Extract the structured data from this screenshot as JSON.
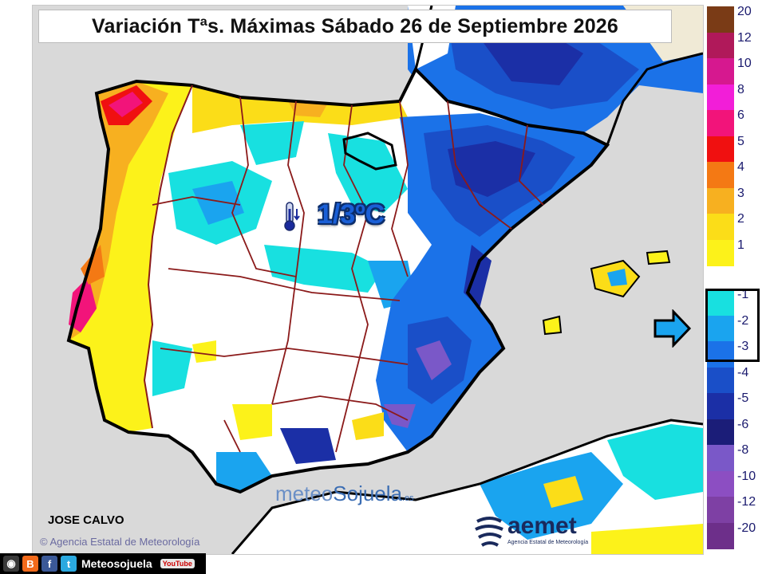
{
  "title": "Variación Tªs. Máximas Sábado 26 de Septiembre 2026",
  "highlight_value": "1/3ºC",
  "author": "JOSE CALVO",
  "agency_credit": "© Agencia Estatal de Meteorología",
  "brand": {
    "meteo_prefix": "meteo",
    "meteo_name": "Sojuela",
    "meteo_domain": ".es",
    "aemet_word": "aemet",
    "aemet_sub": "Agencia Estatal de Meteorología"
  },
  "social": {
    "name": "Meteosojuela",
    "icons": [
      "instagram-icon",
      "blogger-icon",
      "facebook-icon",
      "twitter-icon",
      "youtube-icon"
    ],
    "youtube_label": "YouTube"
  },
  "legend": {
    "items": [
      {
        "label": "20",
        "color": "#7a3b16"
      },
      {
        "label": "12",
        "color": "#b0195a"
      },
      {
        "label": "10",
        "color": "#d6188f"
      },
      {
        "label": "8",
        "color": "#f21ed8"
      },
      {
        "label": "6",
        "color": "#f2147a"
      },
      {
        "label": "5",
        "color": "#f01010"
      },
      {
        "label": "4",
        "color": "#f47914"
      },
      {
        "label": "3",
        "color": "#f7b020"
      },
      {
        "label": "2",
        "color": "#fbdd18"
      },
      {
        "label": "1",
        "color": "#fcf21a"
      },
      {
        "label": "-1",
        "color": "#18e0e0"
      },
      {
        "label": "-2",
        "color": "#1aa4ef"
      },
      {
        "label": "-3",
        "color": "#1b72e8"
      },
      {
        "label": "-4",
        "color": "#1a4fc8"
      },
      {
        "label": "-5",
        "color": "#1b2fa6"
      },
      {
        "label": "-6",
        "color": "#1b1d78"
      },
      {
        "label": "-8",
        "color": "#7a58c8"
      },
      {
        "label": "-10",
        "color": "#8c4ec2"
      },
      {
        "label": "-12",
        "color": "#7e40a4"
      },
      {
        "label": "-20",
        "color": "#6d2f8a"
      }
    ],
    "highlighted": [
      "-1",
      "-2",
      "-3"
    ]
  }
}
